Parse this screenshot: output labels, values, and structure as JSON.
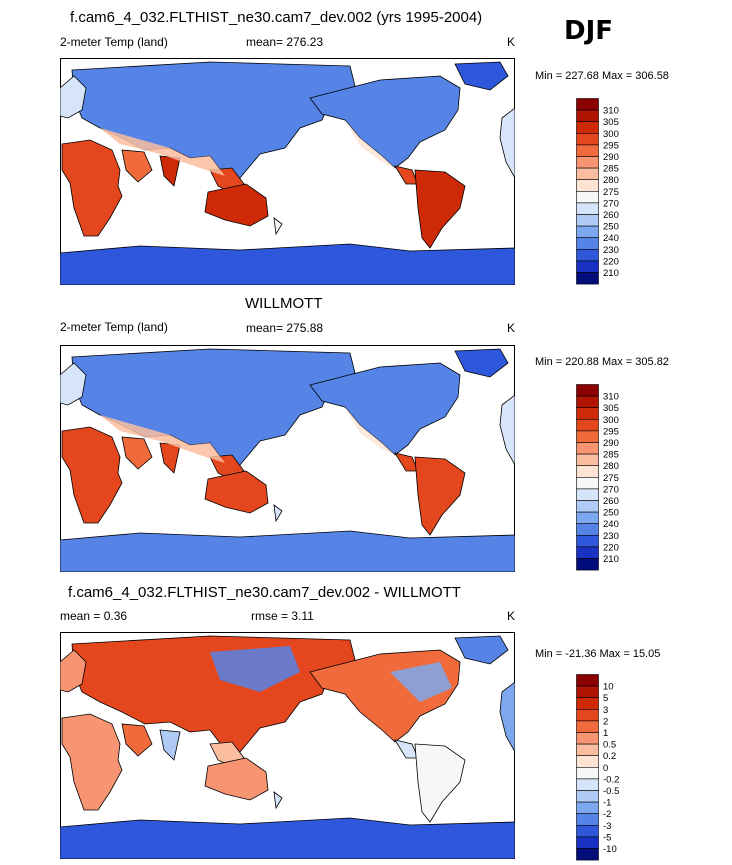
{
  "season": "DJF",
  "panels": [
    {
      "title": "f.cam6_4_032.FLTHIST_ne30.cam7_dev.002 (yrs 1995-2004)",
      "variable": "2-meter Temp (land)",
      "stat1": "mean= 276.23",
      "stat2": "",
      "units": "K",
      "minmax": "Min = 227.68 Max = 306.58"
    },
    {
      "title": "WILLMOTT",
      "variable": "2-meter Temp (land)",
      "stat1": "mean= 275.88",
      "stat2": "",
      "units": "K",
      "minmax": "Min = 220.88 Max = 305.82"
    },
    {
      "title": "f.cam6_4_032.FLTHIST_ne30.cam7_dev.002 - WILLMOTT",
      "variable": "",
      "stat1": "mean =   0.36",
      "stat2": "rmse =   3.11",
      "units": "K",
      "minmax": "Min = -21.36 Max =  15.05"
    }
  ],
  "chart_data": [
    {
      "type": "heatmap",
      "title": "f.cam6_4_032.FLTHIST_ne30.cam7_dev.002 (yrs 1995-2004)",
      "variable": "2-meter Temp (land)",
      "units": "K",
      "mean": 276.23,
      "min": 227.68,
      "max": 306.58,
      "colorbar_levels": [
        "310",
        "305",
        "300",
        "295",
        "290",
        "285",
        "280",
        "275",
        "270",
        "260",
        "250",
        "240",
        "230",
        "220",
        "210"
      ],
      "colors": [
        "#8b0000",
        "#b01400",
        "#cf2a08",
        "#e4461e",
        "#f06a3c",
        "#f79472",
        "#fbbd9f",
        "#fde3d3",
        "#f7f7f7",
        "#d7e5fb",
        "#aecaf5",
        "#7da8ef",
        "#5584e6",
        "#2f57db",
        "#1a32c4",
        "#000d7a"
      ]
    },
    {
      "type": "heatmap",
      "title": "WILLMOTT",
      "variable": "2-meter Temp (land)",
      "units": "K",
      "mean": 275.88,
      "min": 220.88,
      "max": 305.82,
      "colorbar_levels": [
        "310",
        "305",
        "300",
        "295",
        "290",
        "285",
        "280",
        "275",
        "270",
        "260",
        "250",
        "240",
        "230",
        "220",
        "210"
      ],
      "colors": [
        "#8b0000",
        "#b01400",
        "#cf2a08",
        "#e4461e",
        "#f06a3c",
        "#f79472",
        "#fbbd9f",
        "#fde3d3",
        "#f7f7f7",
        "#d7e5fb",
        "#aecaf5",
        "#7da8ef",
        "#5584e6",
        "#2f57db",
        "#1a32c4",
        "#000d7a"
      ]
    },
    {
      "type": "heatmap",
      "title": "f.cam6_4_032.FLTHIST_ne30.cam7_dev.002 - WILLMOTT",
      "units": "K",
      "mean": 0.36,
      "rmse": 3.11,
      "min": -21.36,
      "max": 15.05,
      "colorbar_levels": [
        "10",
        "5",
        "3",
        "2",
        "1",
        "0.5",
        "0.2",
        "0",
        "-0.2",
        "-0.5",
        "-1",
        "-2",
        "-3",
        "-5",
        "-10"
      ],
      "colors": [
        "#8b0000",
        "#b01400",
        "#cf2a08",
        "#e4461e",
        "#f06a3c",
        "#f79472",
        "#fbbd9f",
        "#fde3d3",
        "#f7f7f7",
        "#d7e5fb",
        "#aecaf5",
        "#7da8ef",
        "#5584e6",
        "#2f57db",
        "#1a32c4",
        "#000d7a"
      ]
    }
  ]
}
